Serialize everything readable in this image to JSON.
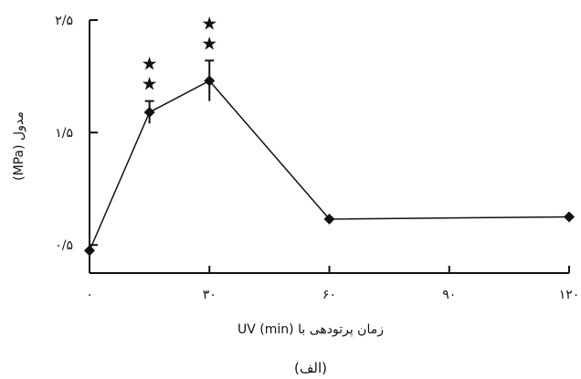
{
  "chart_data": {
    "type": "line",
    "caption": "(الف)",
    "xlabel": "زمان پرتودهی با UV (min)",
    "ylabel": "مدول (MPa)",
    "xlim": [
      0,
      120
    ],
    "ylim": [
      0.25,
      2.5
    ],
    "x_ticks": [
      0,
      30,
      60,
      90,
      120
    ],
    "x_tick_labels": [
      "۰",
      "۳۰",
      "۶۰",
      "۹۰",
      "۱۲۰"
    ],
    "y_ticks": [
      0.5,
      1.5,
      2.5
    ],
    "y_tick_labels": [
      "۰/۵",
      "۱/۵",
      "۲/۵"
    ],
    "series": [
      {
        "x": [
          0,
          15,
          30,
          60,
          120
        ],
        "values": [
          0.45,
          1.68,
          1.96,
          0.73,
          0.75
        ],
        "errors": [
          0.0,
          0.1,
          0.18,
          0.0,
          0.0
        ],
        "marker": "diamond",
        "color": "#111111"
      }
    ],
    "annotations": [
      {
        "x": 15,
        "label": "★★"
      },
      {
        "x": 30,
        "label": "★★"
      }
    ],
    "grid": false
  }
}
